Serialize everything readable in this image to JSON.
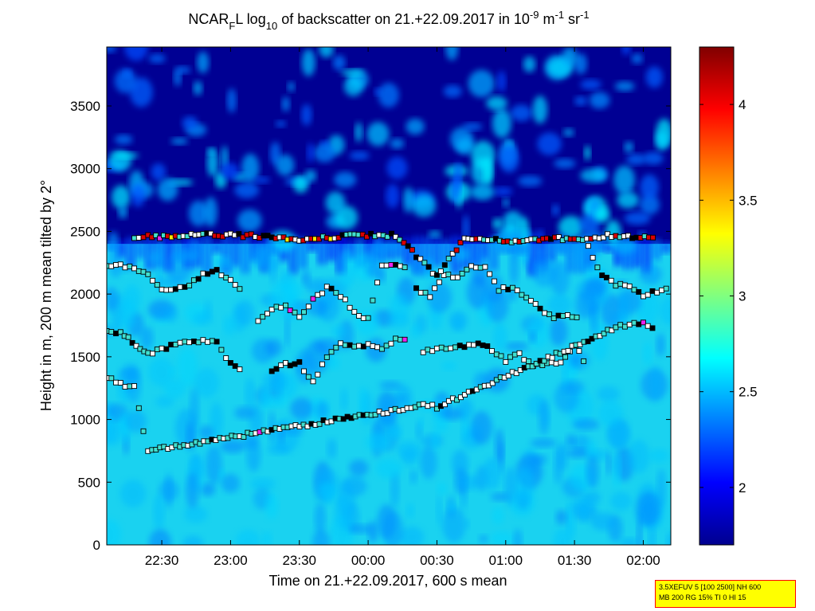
{
  "chart_data": {
    "type": "heatmap",
    "title": {
      "prefix": "NCAR",
      "sub1": "F",
      "mid1": "L log",
      "sub2": "10",
      "mid2": " of backscatter on 21.+22.09.2017 in 10",
      "sup1": "-9",
      "mid3": " m",
      "sup2": "-1",
      "mid4": " sr",
      "sup3": "-1"
    },
    "xlabel": "Time on 21.+22.09.2017, 600 s mean",
    "ylabel": "Height in m, 200 m mean tilted by 2°",
    "x_ticks": [
      "22:30",
      "23:00",
      "23:30",
      "00:00",
      "00:30",
      "01:00",
      "01:30",
      "02:00"
    ],
    "x_tick_hours": [
      22.5,
      23.0,
      23.5,
      24.0,
      24.5,
      25.0,
      25.5,
      26.0
    ],
    "xlim_hours": [
      22.1,
      26.2
    ],
    "y_ticks": [
      0,
      500,
      1000,
      1500,
      2000,
      2500,
      3000,
      3500
    ],
    "ylim": [
      0,
      3970
    ],
    "colorbar": {
      "ticks": [
        "2",
        "2.5",
        "3",
        "3.5",
        "4"
      ],
      "tick_values": [
        2,
        2.5,
        3,
        3.5,
        4
      ],
      "range": [
        1.7,
        4.3
      ],
      "colormap": "jet"
    },
    "background_field": {
      "description_levels": "log10 backscatter",
      "above_boundary_layer": 1.75,
      "boundary_layer_top": 2.45,
      "near_ground": 2.55
    },
    "detected_layers": [
      {
        "name": "",
        "points": [
          [
            22.1,
            2220
          ],
          [
            22.2,
            2240
          ],
          [
            22.3,
            2200
          ],
          [
            22.4,
            2160
          ],
          [
            22.5,
            2040
          ],
          [
            22.6,
            2050
          ],
          [
            22.7,
            2080
          ],
          [
            22.8,
            2150
          ],
          [
            22.9,
            2190
          ],
          [
            23.0,
            2100
          ],
          [
            23.1,
            2000
          ]
        ]
      },
      {
        "name": "",
        "points": [
          [
            23.2,
            1780
          ],
          [
            23.3,
            1890
          ],
          [
            23.4,
            1900
          ],
          [
            23.5,
            1820
          ],
          [
            23.6,
            1950
          ],
          [
            23.7,
            2050
          ],
          [
            23.8,
            1990
          ],
          [
            23.9,
            1860
          ],
          [
            24.0,
            1800
          ],
          [
            24.1,
            2220
          ],
          [
            24.2,
            2220
          ],
          [
            24.3,
            2200
          ]
        ]
      },
      {
        "name": "",
        "points": [
          [
            24.35,
            2040
          ],
          [
            24.45,
            1980
          ],
          [
            24.55,
            2150
          ],
          [
            24.65,
            2130
          ],
          [
            24.75,
            2230
          ],
          [
            24.85,
            2210
          ],
          [
            24.95,
            2040
          ],
          [
            25.05,
            2040
          ],
          [
            25.15,
            1980
          ],
          [
            25.25,
            1880
          ],
          [
            25.35,
            1820
          ],
          [
            25.45,
            1830
          ],
          [
            25.55,
            1800
          ]
        ]
      },
      {
        "name": "",
        "points": [
          [
            25.6,
            2370
          ],
          [
            25.7,
            2150
          ],
          [
            25.8,
            2080
          ],
          [
            25.9,
            2050
          ],
          [
            26.0,
            1990
          ],
          [
            26.1,
            2020
          ],
          [
            26.2,
            2040
          ]
        ]
      },
      {
        "name": "",
        "points": [
          [
            22.1,
            1700
          ],
          [
            22.2,
            1700
          ],
          [
            22.4,
            1520
          ],
          [
            22.5,
            1560
          ],
          [
            22.6,
            1600
          ],
          [
            22.7,
            1620
          ],
          [
            22.8,
            1620
          ],
          [
            22.9,
            1620
          ],
          [
            23.0,
            1440
          ],
          [
            23.1,
            1400
          ]
        ]
      },
      {
        "name": "",
        "points": [
          [
            23.3,
            1400
          ],
          [
            23.4,
            1440
          ],
          [
            23.5,
            1450
          ],
          [
            23.6,
            1290
          ],
          [
            23.7,
            1500
          ],
          [
            23.8,
            1620
          ],
          [
            23.9,
            1580
          ],
          [
            24.0,
            1600
          ],
          [
            24.1,
            1560
          ],
          [
            24.2,
            1640
          ],
          [
            24.3,
            1650
          ]
        ]
      },
      {
        "name": "",
        "points": [
          [
            24.4,
            1540
          ],
          [
            24.5,
            1560
          ],
          [
            24.6,
            1570
          ],
          [
            24.7,
            1590
          ],
          [
            24.8,
            1610
          ],
          [
            24.9,
            1560
          ],
          [
            25.0,
            1470
          ],
          [
            25.1,
            1520
          ],
          [
            25.2,
            1430
          ],
          [
            25.3,
            1440
          ],
          [
            25.4,
            1440
          ],
          [
            25.5,
            1600
          ],
          [
            25.6,
            1420
          ]
        ]
      },
      {
        "name": "",
        "points": [
          [
            22.1,
            1340
          ],
          [
            22.2,
            1280
          ],
          [
            22.3,
            1260
          ],
          [
            22.4,
            750
          ],
          [
            24.4,
            1110
          ],
          [
            24.5,
            1100
          ],
          [
            25.8,
            1730
          ],
          [
            25.9,
            1760
          ],
          [
            26.0,
            1780
          ],
          [
            26.1,
            1720
          ]
        ]
      },
      {
        "name": "",
        "points": [
          [
            22.3,
            2440
          ],
          [
            22.4,
            2460
          ],
          [
            22.6,
            2460
          ],
          [
            22.8,
            2470
          ],
          [
            23.0,
            2470
          ],
          [
            23.3,
            2460
          ],
          [
            23.5,
            2440
          ],
          [
            23.7,
            2450
          ],
          [
            23.9,
            2470
          ],
          [
            24.2,
            2470
          ],
          [
            24.5,
            2140
          ],
          [
            24.7,
            2440
          ],
          [
            24.9,
            2440
          ],
          [
            25.1,
            2420
          ],
          [
            25.3,
            2440
          ],
          [
            25.5,
            2440
          ],
          [
            25.8,
            2470
          ],
          [
            26.1,
            2440
          ]
        ]
      }
    ],
    "marker_colors": {
      "low": "#40e0d0",
      "white": "#ffffff",
      "black": "#000000",
      "red": "#dd0000",
      "yellow": "#ffee00",
      "magenta": "#ee22ee"
    }
  },
  "info_box": {
    "line1": "3.5XEFUV 5 [100 2500] NH 600",
    "line2": "MB 200 RG 15% TI 0 HI 15"
  }
}
